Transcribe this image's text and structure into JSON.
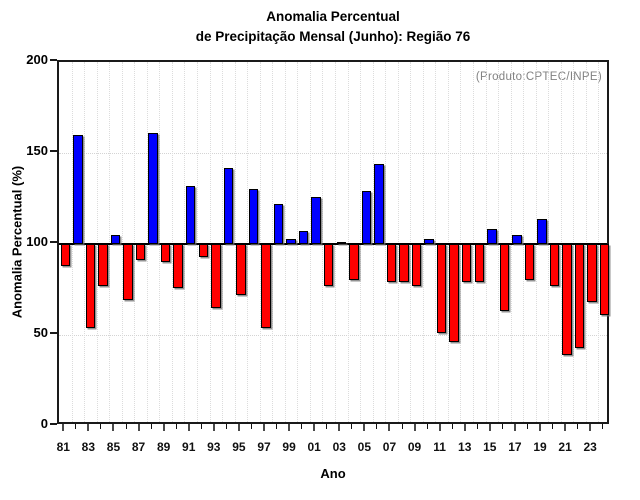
{
  "chart_data": {
    "type": "bar",
    "title": "Anomalia Percentual",
    "subtitle": "de Precipitação Mensal (Junho): Região 76",
    "annotation": "(Produto:CPTEC/INPE)",
    "xlabel": "Ano",
    "ylabel": "Anomalia Percentual (%)",
    "ylim": [
      0,
      200
    ],
    "yticks": [
      0,
      50,
      100,
      150,
      200
    ],
    "baseline": 100,
    "grid": "dotted",
    "legend": "none",
    "categories": [
      "81",
      "82",
      "83",
      "84",
      "85",
      "86",
      "87",
      "88",
      "89",
      "90",
      "91",
      "92",
      "93",
      "94",
      "95",
      "96",
      "97",
      "98",
      "99",
      "00",
      "01",
      "02",
      "03",
      "04",
      "05",
      "06",
      "07",
      "08",
      "09",
      "10",
      "11",
      "12",
      "13",
      "14",
      "15",
      "16",
      "17",
      "18",
      "19",
      "20",
      "21",
      "22",
      "23",
      "24"
    ],
    "values": [
      88,
      160,
      54,
      77,
      105,
      69,
      91,
      161,
      90,
      76,
      132,
      93,
      65,
      142,
      72,
      130,
      54,
      122,
      103,
      107,
      126,
      77,
      101,
      80,
      129,
      144,
      79,
      79,
      77,
      103,
      51,
      46,
      79,
      79,
      108,
      63,
      105,
      80,
      114,
      77,
      39,
      43,
      68,
      61
    ],
    "labeled_categories": [
      "81",
      "83",
      "85",
      "87",
      "89",
      "91",
      "93",
      "95",
      "97",
      "99",
      "01",
      "03",
      "05",
      "07",
      "09",
      "11",
      "13",
      "15",
      "17",
      "19",
      "21",
      "23"
    ],
    "colors": {
      "above_baseline": "#0000ff",
      "below_baseline": "#ff0000",
      "bar_outline": "#000000",
      "baseline_line": "#000000",
      "grid": "#d8d8d8",
      "frame": "#1a1a1a",
      "annotation_text": "#828282"
    }
  }
}
